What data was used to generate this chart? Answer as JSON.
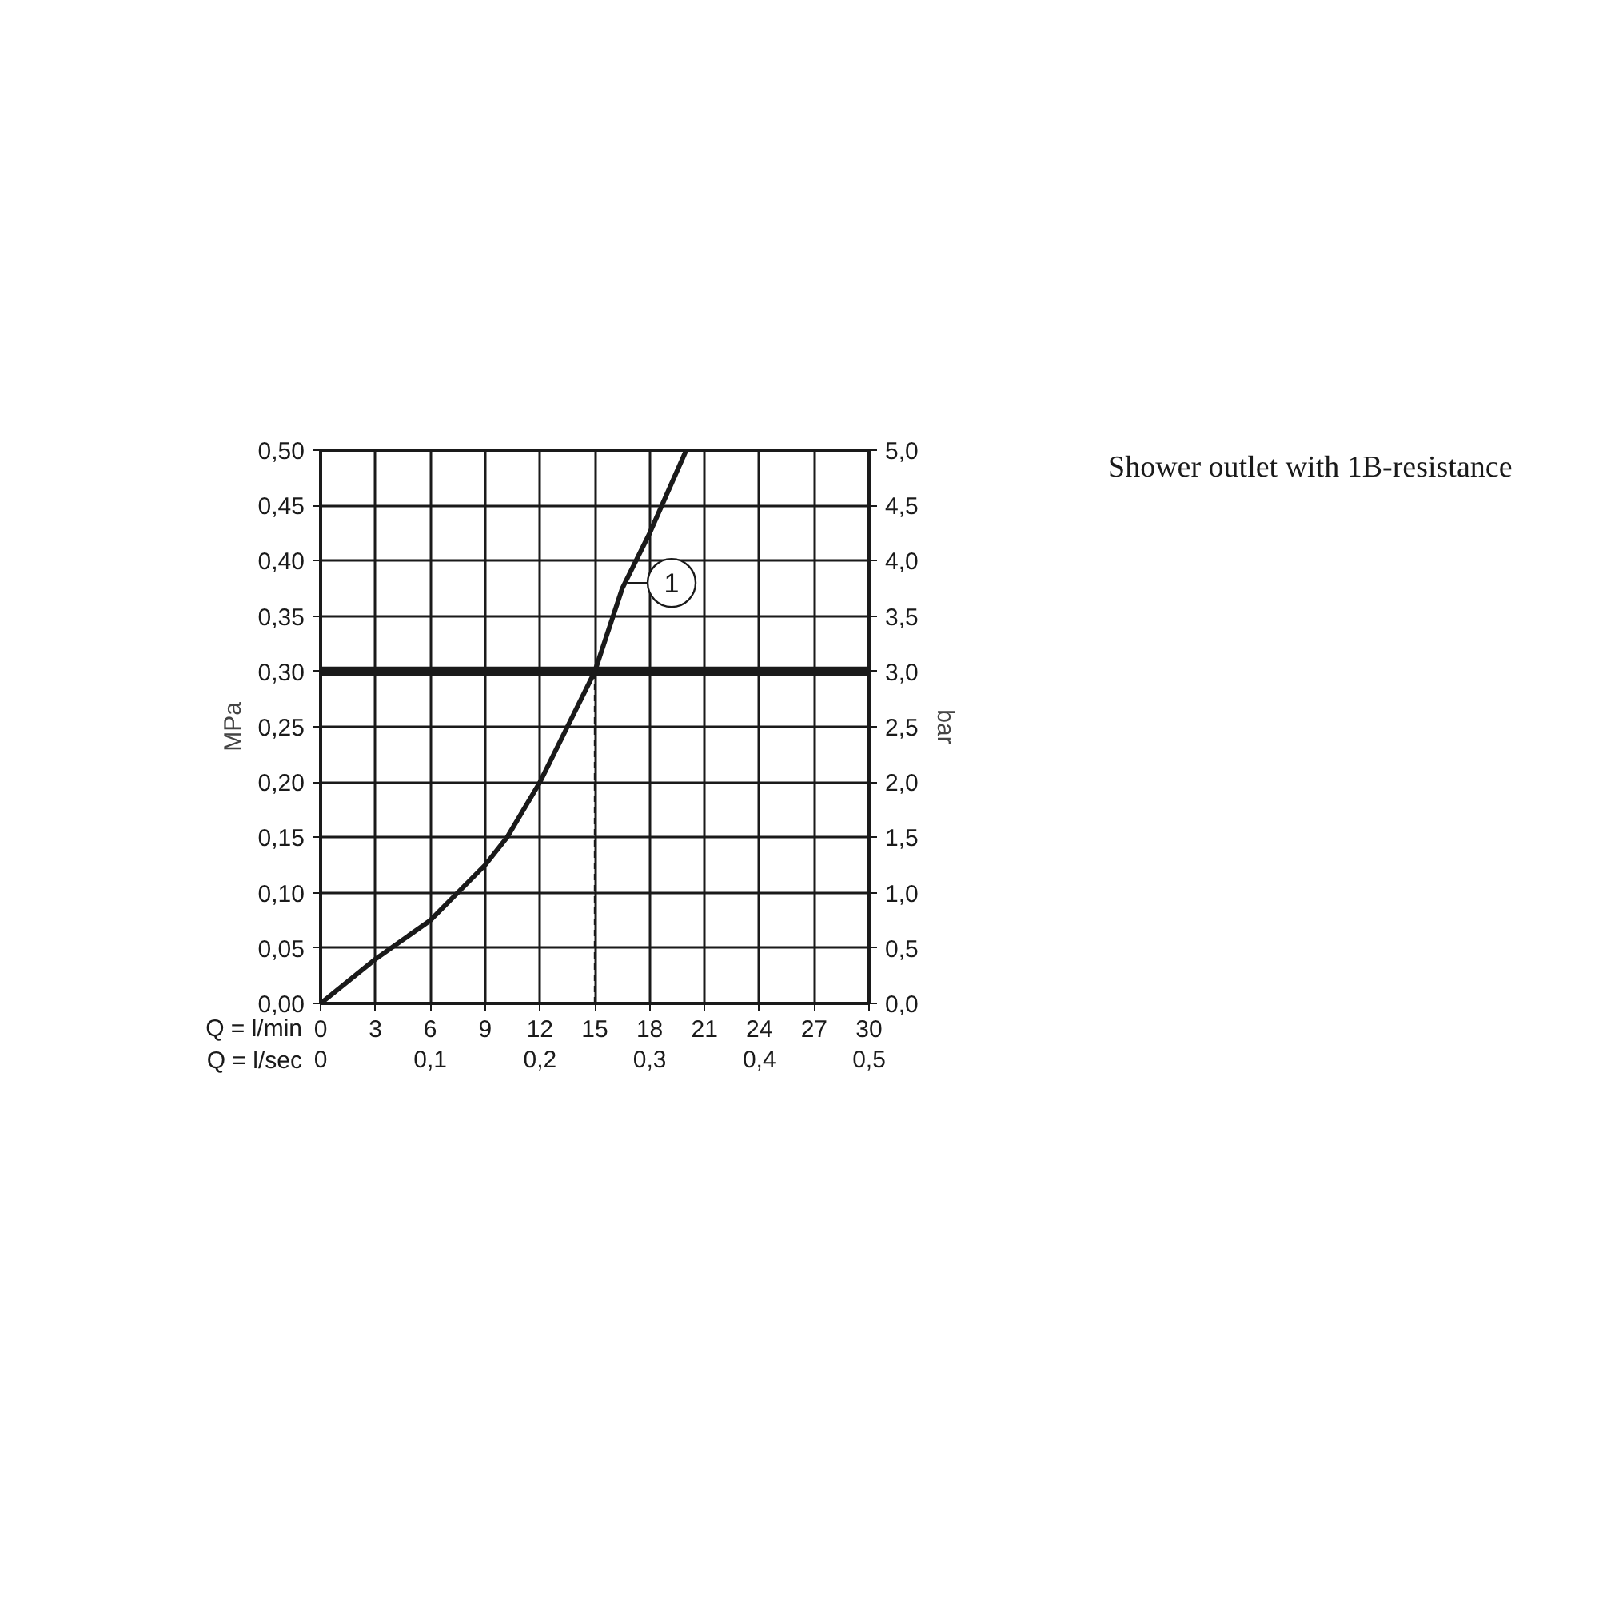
{
  "chart_data": {
    "type": "line",
    "x": [
      0,
      3,
      6,
      9,
      10.2,
      12,
      13.5,
      15,
      16,
      16.5,
      18,
      20
    ],
    "series": [
      {
        "color": "#1a1a1a",
        "values": [
          0,
          0.04,
          0.075,
          0.125,
          0.15,
          0.2,
          0.25,
          0.3,
          0.35,
          0.375,
          0.425,
          0.5
        ]
      }
    ],
    "xlim": [
      0,
      30
    ],
    "ylim": [
      0,
      0.5
    ],
    "y2lim": [
      0,
      5
    ],
    "x2lim": [
      0,
      0.5
    ],
    "xticks": [
      0,
      3,
      6,
      9,
      12,
      15,
      18,
      21,
      24,
      27,
      30
    ],
    "x2ticks": [
      0,
      {
        "value": 0.1,
        "label": "0,1"
      },
      {
        "value": 0.2,
        "label": "0,2"
      },
      {
        "value": 0.3,
        "label": "0,3"
      },
      {
        "value": 0.4,
        "label": "0,4"
      },
      {
        "value": 0.5,
        "label": "0,5"
      }
    ],
    "yticks": [
      {
        "value": 0,
        "label": "0,00"
      },
      {
        "value": 0.05,
        "label": "0,05"
      },
      {
        "value": 0.1,
        "label": "0,10"
      },
      {
        "value": 0.15,
        "label": "0,15"
      },
      {
        "value": 0.2,
        "label": "0,20"
      },
      {
        "value": 0.25,
        "label": "0,25"
      },
      {
        "value": 0.3,
        "label": "0,30"
      },
      {
        "value": 0.35,
        "label": "0,35"
      },
      {
        "value": 0.4,
        "label": "0,40"
      },
      {
        "value": 0.45,
        "label": "0,45"
      },
      {
        "value": 0.5,
        "label": "0,50"
      }
    ],
    "y2ticks": [
      {
        "value": 0,
        "label": "0,0"
      },
      {
        "value": 0.5,
        "label": "0,5"
      },
      {
        "value": 1,
        "label": "1,0"
      },
      {
        "value": 1.5,
        "label": "1,5"
      },
      {
        "value": 2,
        "label": "2,0"
      },
      {
        "value": 2.5,
        "label": "2,5"
      },
      {
        "value": 3,
        "label": "3,0"
      },
      {
        "value": 3.5,
        "label": "3,5"
      },
      {
        "value": 4,
        "label": "4,0"
      },
      {
        "value": 4.5,
        "label": "4,5"
      },
      {
        "value": 5,
        "label": "5,0"
      }
    ],
    "xlabel": "Q = l/min",
    "x2label": "Q = l/sec",
    "ylabel": "MPa",
    "y2label": "bar",
    "ref_lines": [
      {
        "axis": "y",
        "value": 0.3,
        "color": "#1a1a1a",
        "line_style": "solid"
      },
      {
        "axis": "x",
        "value": 15,
        "color": "#1a1a1a",
        "line_style": "dashed"
      }
    ],
    "annotations": [
      {
        "text": "1",
        "x": 16.8,
        "y": 0.38
      },
      "Shower outlet with 1B-resistance"
    ],
    "grid": true,
    "marker": "none",
    "line_style": "solid"
  }
}
